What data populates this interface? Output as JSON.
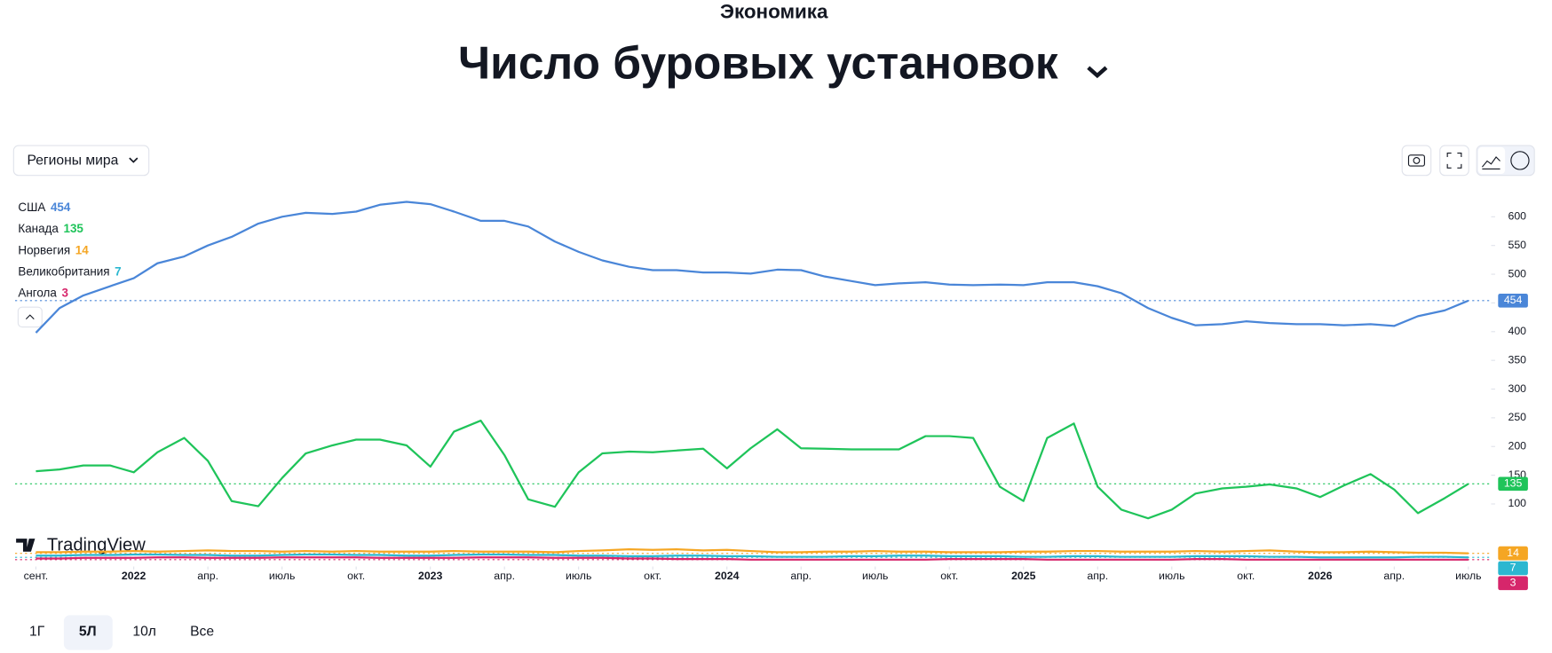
{
  "header": {
    "section": "Экономика"
  },
  "ui": {
    "dropdown": "Регионы мира",
    "watermark": "TradingView",
    "ranges": [
      "1Г",
      "5Л",
      "10л",
      "Все"
    ]
  },
  "chart_data": {
    "type": "line",
    "title": "Число буровых установок",
    "x": [
      2021.67,
      2021.75,
      2021.83,
      2021.92,
      2022,
      2022.08,
      2022.17,
      2022.25,
      2022.33,
      2022.42,
      2022.5,
      2022.58,
      2022.67,
      2022.75,
      2022.83,
      2022.92,
      2023,
      2023.08,
      2023.17,
      2023.25,
      2023.33,
      2023.42,
      2023.5,
      2023.58,
      2023.67,
      2023.75,
      2023.83,
      2023.92,
      2024,
      2024.08,
      2024.17,
      2024.25,
      2024.33,
      2024.42,
      2024.5,
      2024.58,
      2024.67,
      2024.75,
      2024.83,
      2024.92,
      2025,
      2025.08,
      2025.17,
      2025.25,
      2025.33,
      2025.42,
      2025.5,
      2025.58,
      2025.67,
      2025.75,
      2025.83,
      2025.92,
      2026,
      2026.08,
      2026.17,
      2026.25,
      2026.33,
      2026.42,
      2026.5
    ],
    "series": [
      {
        "name": "США",
        "color": "#4a86d8",
        "values": [
          398,
          441,
          463,
          479,
          493,
          519,
          531,
          550,
          565,
          588,
          600,
          607,
          605,
          609,
          621,
          626,
          622,
          609,
          593,
          593,
          583,
          557,
          539,
          524,
          513,
          507,
          507,
          503,
          503,
          501,
          508,
          507,
          496,
          488,
          481,
          484,
          486,
          482,
          481,
          482,
          481,
          486,
          486,
          479,
          467,
          441,
          424,
          411,
          413,
          418,
          415,
          413,
          413,
          411,
          413,
          410,
          427,
          437,
          454
        ]
      },
      {
        "name": "Канада",
        "color": "#1fc45a",
        "values": [
          157,
          160,
          167,
          167,
          155,
          190,
          215,
          175,
          105,
          96,
          145,
          188,
          202,
          212,
          212,
          202,
          165,
          226,
          245,
          185,
          108,
          95,
          155,
          188,
          191,
          190,
          193,
          196,
          162,
          197,
          230,
          197,
          196,
          195,
          195,
          195,
          218,
          218,
          215,
          130,
          105,
          215,
          240,
          130,
          90,
          75,
          90,
          118,
          127,
          130,
          134,
          127,
          112,
          132,
          152,
          125,
          84,
          110,
          135
        ]
      },
      {
        "name": "Норвегия",
        "color": "#f5a623",
        "values": [
          16,
          16,
          17,
          17,
          18,
          17,
          18,
          19,
          18,
          18,
          17,
          18,
          17,
          18,
          17,
          17,
          17,
          18,
          17,
          17,
          17,
          16,
          18,
          19,
          21,
          20,
          21,
          19,
          20,
          18,
          16,
          16,
          17,
          17,
          18,
          17,
          17,
          16,
          16,
          16,
          17,
          17,
          18,
          18,
          17,
          17,
          17,
          18,
          17,
          18,
          19,
          17,
          16,
          16,
          17,
          16,
          15,
          15,
          14
        ]
      },
      {
        "name": "Великобритания",
        "color": "#2bb7d0",
        "values": [
          10,
          10,
          11,
          11,
          12,
          12,
          11,
          11,
          10,
          10,
          11,
          12,
          12,
          11,
          11,
          10,
          10,
          11,
          12,
          12,
          11,
          11,
          10,
          10,
          9,
          9,
          10,
          10,
          9,
          9,
          8,
          8,
          8,
          9,
          9,
          10,
          10,
          9,
          9,
          9,
          8,
          8,
          9,
          9,
          8,
          8,
          8,
          9,
          9,
          9,
          8,
          8,
          7,
          7,
          7,
          7,
          8,
          8,
          7
        ]
      },
      {
        "name": "Ангола",
        "color": "#d6266b",
        "values": [
          5,
          5,
          6,
          6,
          6,
          7,
          7,
          6,
          6,
          6,
          7,
          7,
          7,
          7,
          6,
          6,
          6,
          6,
          7,
          7,
          7,
          6,
          6,
          6,
          5,
          5,
          4,
          4,
          4,
          3,
          3,
          3,
          3,
          3,
          3,
          3,
          3,
          4,
          4,
          4,
          4,
          3,
          3,
          3,
          3,
          3,
          3,
          4,
          4,
          3,
          3,
          3,
          3,
          3,
          3,
          3,
          3,
          3,
          3
        ]
      }
    ],
    "xlim": [
      2021.6,
      2026.57
    ],
    "xticks": [
      {
        "value": 2021.67,
        "label": "сент."
      },
      2022,
      {
        "value": 2022.25,
        "label": "апр."
      },
      {
        "value": 2022.5,
        "label": "июль"
      },
      {
        "value": 2022.75,
        "label": "окт."
      },
      2023,
      {
        "value": 2023.25,
        "label": "апр."
      },
      {
        "value": 2023.5,
        "label": "июль"
      },
      {
        "value": 2023.75,
        "label": "окт."
      },
      2024,
      {
        "value": 2024.25,
        "label": "апр."
      },
      {
        "value": 2024.5,
        "label": "июль"
      },
      {
        "value": 2024.75,
        "label": "окт."
      },
      2025,
      {
        "value": 2025.25,
        "label": "апр."
      },
      {
        "value": 2025.5,
        "label": "июль"
      },
      {
        "value": 2025.75,
        "label": "окт."
      },
      2026,
      {
        "value": 2026.25,
        "label": "апр."
      },
      {
        "value": 2026.5,
        "label": "июль"
      }
    ],
    "ylim": [
      -9,
      640
    ],
    "yticks": [
      100,
      150,
      200,
      250,
      300,
      350,
      400,
      450,
      500,
      550,
      600
    ],
    "grid": false
  }
}
